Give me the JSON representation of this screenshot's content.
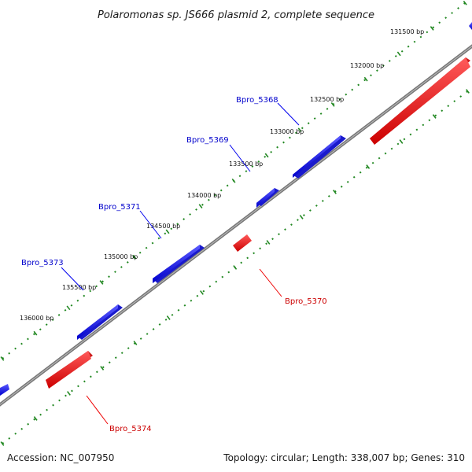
{
  "title": "Polaromonas sp. JS666 plasmid 2, complete sequence",
  "footer": {
    "accession": "Accession: NC_007950",
    "summary": "Topology: circular; Length: 338,007 bp; Genes: 310"
  },
  "colors": {
    "forward_gene": "#0000ee",
    "reverse_gene": "#ee0000",
    "backbone": "#888888",
    "tick_dots": "#228822"
  },
  "position_labels": [
    "131500 bp",
    "132000 bp",
    "132500 bp",
    "133000 bp",
    "133500 bp",
    "134000 bp",
    "134500 bp",
    "135000 bp",
    "135500 bp",
    "136000 bp"
  ],
  "genes": [
    {
      "name": "Bpro_5368",
      "strand": "forward"
    },
    {
      "name": "Bpro_5369",
      "strand": "forward"
    },
    {
      "name": "Bpro_5370",
      "strand": "reverse"
    },
    {
      "name": "Bpro_5371",
      "strand": "forward"
    },
    {
      "name": "Bpro_5373",
      "strand": "forward"
    },
    {
      "name": "Bpro_5374",
      "strand": "reverse"
    }
  ]
}
